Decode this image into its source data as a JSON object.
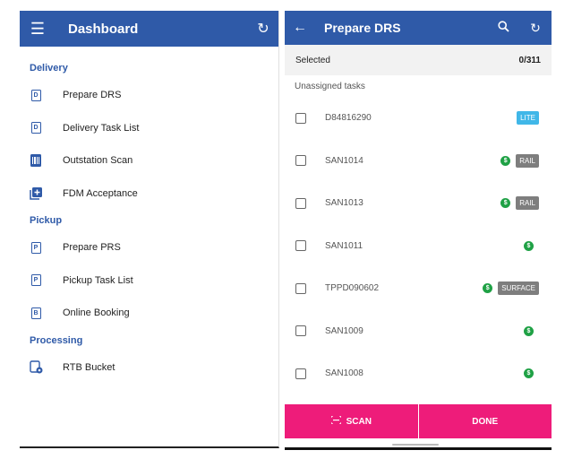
{
  "left": {
    "title": "Dashboard",
    "sections": [
      {
        "title": "Delivery",
        "items": [
          {
            "label": "Prepare DRS",
            "icon_letter": "D"
          },
          {
            "label": "Delivery Task List",
            "icon_letter": "D"
          },
          {
            "label": "Outstation Scan",
            "icon_letter": ""
          },
          {
            "label": "FDM Acceptance",
            "icon_letter": "+"
          }
        ]
      },
      {
        "title": "Pickup",
        "items": [
          {
            "label": "Prepare PRS",
            "icon_letter": "P"
          },
          {
            "label": "Pickup Task List",
            "icon_letter": "P"
          },
          {
            "label": "Online Booking",
            "icon_letter": "B"
          }
        ]
      },
      {
        "title": "Processing",
        "items": [
          {
            "label": "RTB Bucket",
            "icon_letter": ""
          }
        ]
      }
    ]
  },
  "right": {
    "title": "Prepare DRS",
    "selected_label": "Selected",
    "selected_count": "0/311",
    "subheader": "Unassigned tasks",
    "tasks": [
      {
        "id": "D84816290",
        "money": false,
        "tag": "LITE"
      },
      {
        "id": "SAN1014",
        "money": true,
        "tag": "RAIL"
      },
      {
        "id": "SAN1013",
        "money": true,
        "tag": "RAIL"
      },
      {
        "id": "SAN1011",
        "money": true,
        "tag": ""
      },
      {
        "id": "TPPD090602",
        "money": true,
        "tag": "SURFACE"
      },
      {
        "id": "SAN1009",
        "money": true,
        "tag": ""
      },
      {
        "id": "SAN1008",
        "money": true,
        "tag": ""
      }
    ],
    "scan_label": "SCAN",
    "done_label": "DONE"
  },
  "colors": {
    "primary": "#2f5aa8",
    "accent": "#ee1c7a",
    "money": "#1fa145",
    "lite": "#40b7e8",
    "tag_grey": "#7e7e7e"
  }
}
